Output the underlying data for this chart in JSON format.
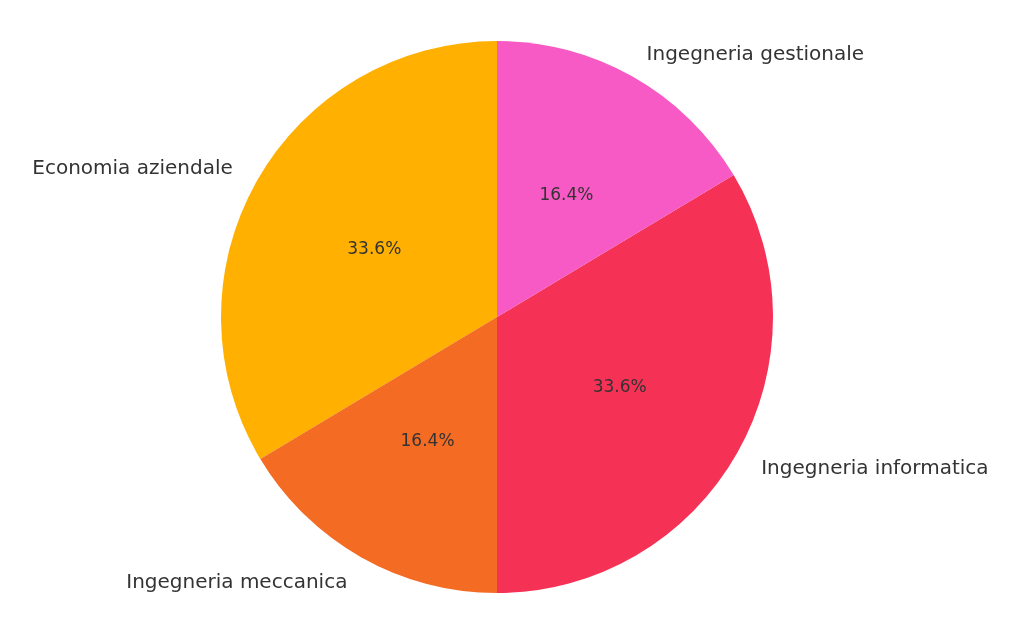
{
  "chart_data": {
    "type": "pie",
    "categories": [
      "Economia aziendale",
      "Ingegneria meccanica",
      "Ingegneria informatica",
      "Ingegneria gestionale"
    ],
    "values": [
      33.6,
      16.4,
      33.6,
      16.4
    ],
    "colors": [
      "#ffb000",
      "#f46b23",
      "#f53255",
      "#f75ac4"
    ],
    "value_labels": [
      "33.6%",
      "16.4%",
      "33.6%",
      "16.4%"
    ],
    "legend": false
  }
}
